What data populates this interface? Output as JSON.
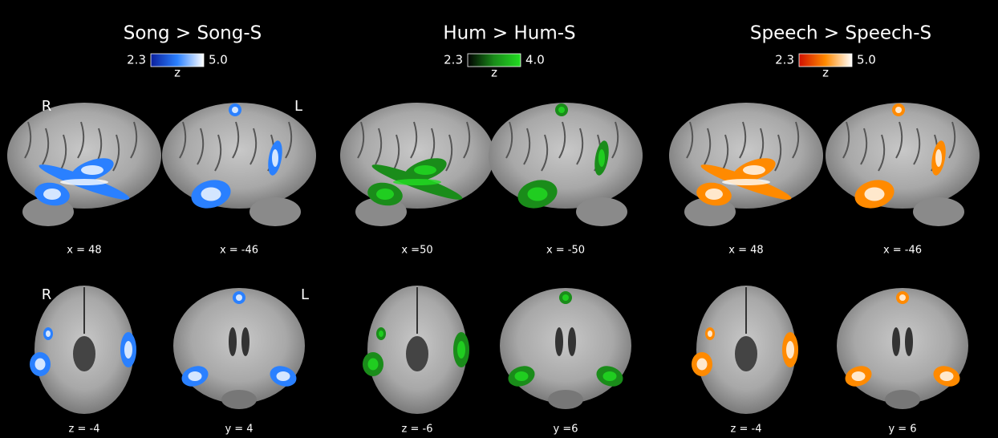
{
  "hemisphere_labels": [
    "R",
    "L",
    "R",
    "L"
  ],
  "panels": [
    {
      "title": "Song > Song-S",
      "colorbar": {
        "min": "2.3",
        "max": "5.0",
        "label": "z",
        "colors": [
          "#0b1f9c",
          "#2a80ff",
          "#ffffff"
        ]
      },
      "views": [
        "x = 48",
        "x = -46",
        "z = -4",
        "y = 4"
      ]
    },
    {
      "title": "Hum > Hum-S",
      "colorbar": {
        "min": "2.3",
        "max": "4.0",
        "label": "z",
        "colors": [
          "#000000",
          "#1a8c1a",
          "#22dd22"
        ]
      },
      "views": [
        "x =50",
        "x = -50",
        "z = -6",
        "y =6"
      ]
    },
    {
      "title": "Speech > Speech-S",
      "colorbar": {
        "min": "2.3",
        "max": "5.0",
        "label": "z",
        "colors": [
          "#d01000",
          "#ff8a00",
          "#ffffff"
        ]
      },
      "views": [
        "x = 48",
        "x = -46",
        "z = -4",
        "y = 6"
      ]
    }
  ]
}
